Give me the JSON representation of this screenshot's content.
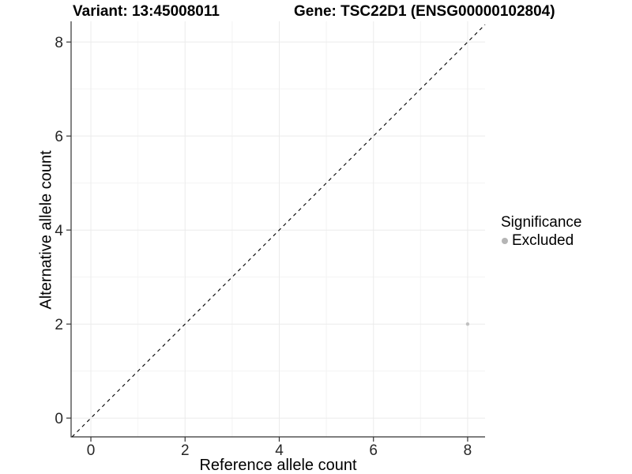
{
  "header": {
    "variant_title": "Variant: 13:45008011",
    "gene_title": "Gene: TSC22D1 (ENSG00000102804)"
  },
  "chart_data": {
    "type": "scatter",
    "title_left": "Variant: 13:45008011",
    "title_right": "Gene: TSC22D1 (ENSG00000102804)",
    "xlabel": "Reference allele count",
    "ylabel": "Alternative allele count",
    "xlim": [
      -0.42,
      8.37
    ],
    "ylim": [
      -0.4,
      8.44
    ],
    "x_ticks": [
      0,
      2,
      4,
      6,
      8
    ],
    "y_ticks": [
      0,
      2,
      4,
      6,
      8
    ],
    "x_minor_ticks": [
      1,
      3,
      5,
      7
    ],
    "y_minor_ticks": [
      1,
      3,
      5,
      7
    ],
    "grid": true,
    "points": [
      {
        "x": 8,
        "y": 2,
        "series": "Excluded"
      }
    ],
    "reference_line": {
      "type": "identity",
      "style": "dashed",
      "color": "#000000"
    },
    "legend": {
      "position": "right",
      "title": "Significance",
      "entries": [
        {
          "label": "Excluded",
          "color": "#bdbdbd"
        }
      ]
    },
    "colors": {
      "point": "#c0c0c0",
      "legend_key": "#b5b5b5",
      "axis_line": "#333333",
      "grid_major": "#ebebeb",
      "grid_minor": "#f4f4f4",
      "tick_label": "#262626",
      "dashed_line": "#000000"
    }
  }
}
